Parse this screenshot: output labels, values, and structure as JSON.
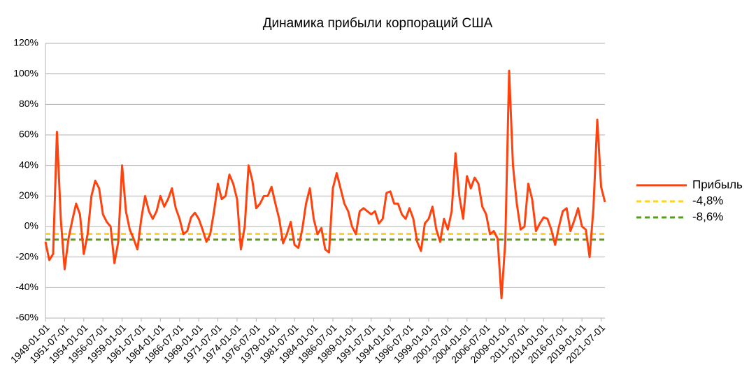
{
  "chart_data": {
    "type": "line",
    "title": "Динамика прибыли корпораций США",
    "categories": [
      "1949-01-01",
      null,
      null,
      null,
      null,
      "1951-07-01",
      null,
      null,
      null,
      null,
      "1954-01-01",
      null,
      null,
      null,
      null,
      "1956-07-01",
      null,
      null,
      null,
      null,
      "1959-01-01",
      null,
      null,
      null,
      null,
      "1961-07-01",
      null,
      null,
      null,
      null,
      "1964-01-01",
      null,
      null,
      null,
      null,
      "1966-07-01",
      null,
      null,
      null,
      null,
      "1969-01-01",
      null,
      null,
      null,
      null,
      "1971-07-01",
      null,
      null,
      null,
      null,
      "1974-01-01",
      null,
      null,
      null,
      null,
      "1976-07-01",
      null,
      null,
      null,
      null,
      "1979-01-01",
      null,
      null,
      null,
      null,
      "1981-07-01",
      null,
      null,
      null,
      null,
      "1984-01-01",
      null,
      null,
      null,
      null,
      "1986-07-01",
      null,
      null,
      null,
      null,
      "1989-01-01",
      null,
      null,
      null,
      null,
      "1991-07-01",
      null,
      null,
      null,
      null,
      "1994-01-01",
      null,
      null,
      null,
      null,
      "1996-07-01",
      null,
      null,
      null,
      null,
      "1999-01-01",
      null,
      null,
      null,
      null,
      "2001-07-01",
      null,
      null,
      null,
      null,
      "2004-01-01",
      null,
      null,
      null,
      null,
      "2006-07-01",
      null,
      null,
      null,
      null,
      "2009-01-01",
      null,
      null,
      null,
      null,
      "2011-07-01",
      null,
      null,
      null,
      null,
      "2014-01-01",
      null,
      null,
      null,
      null,
      "2016-07-01",
      null,
      null,
      null,
      null,
      "2019-01-01",
      null,
      null,
      null,
      null,
      "2021-07-01",
      null
    ],
    "series": [
      {
        "name": "Прибыль",
        "color": "#ff420e",
        "values": [
          -10,
          -22,
          -18,
          62,
          5,
          -28,
          -8,
          4,
          15,
          8,
          -18,
          -5,
          20,
          30,
          25,
          8,
          3,
          0,
          -24,
          -10,
          40,
          10,
          -2,
          -8,
          -15,
          5,
          20,
          10,
          5,
          10,
          20,
          13,
          18,
          25,
          12,
          5,
          -5,
          -3,
          6,
          9,
          5,
          -2,
          -10,
          -5,
          10,
          28,
          18,
          20,
          34,
          28,
          18,
          -15,
          0,
          40,
          30,
          12,
          15,
          20,
          20,
          26,
          15,
          5,
          -11,
          -5,
          3,
          -12,
          -14,
          -2,
          15,
          25,
          5,
          -5,
          -1,
          -15,
          -17,
          25,
          35,
          25,
          15,
          10,
          0,
          -5,
          10,
          12,
          10,
          8,
          10,
          2,
          5,
          22,
          23,
          15,
          15,
          8,
          5,
          12,
          5,
          -10,
          -16,
          2,
          5,
          13,
          -2,
          -10,
          5,
          -2,
          10,
          48,
          20,
          5,
          33,
          25,
          32,
          28,
          13,
          8,
          -5,
          -3,
          -8,
          -47,
          -10,
          102,
          40,
          15,
          -2,
          0,
          28,
          18,
          -3,
          2,
          6,
          5,
          -2,
          -12,
          0,
          10,
          12,
          -3,
          4,
          12,
          0,
          -2,
          -20,
          12,
          70,
          26,
          16
        ]
      }
    ],
    "hlines": [
      {
        "name": "-4,8%",
        "value": -4.8,
        "color": "#ffd320"
      },
      {
        "name": "-8,6%",
        "value": -8.6,
        "color": "#579d1c"
      }
    ],
    "ylim": [
      -60,
      120
    ],
    "yticks": [
      {
        "value": -60,
        "label": "-60%"
      },
      {
        "value": -40,
        "label": "-40%"
      },
      {
        "value": -20,
        "label": "-20%"
      },
      {
        "value": 0,
        "label": "0%"
      },
      {
        "value": 20,
        "label": "20%"
      },
      {
        "value": 40,
        "label": "40%"
      },
      {
        "value": 60,
        "label": "60%"
      },
      {
        "value": 80,
        "label": "80%"
      },
      {
        "value": 100,
        "label": "100%"
      },
      {
        "value": 120,
        "label": "120%"
      }
    ],
    "grid": true,
    "legend": "right"
  }
}
